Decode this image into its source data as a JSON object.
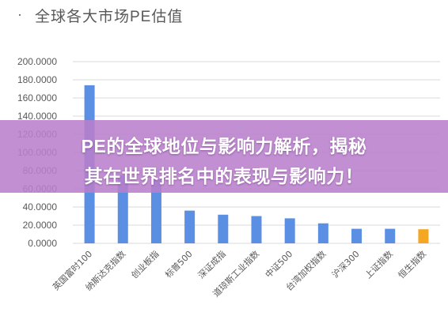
{
  "header": {
    "dot": "·",
    "title": "全球各大市场PE估值"
  },
  "banner": {
    "line1": "PE的全球地位与影响力解析，揭秘",
    "line2": "其在世界排名中的表现与影响力！"
  },
  "colors": {
    "bar": "#5b8fe3",
    "highlight_bar": "#f5a623",
    "grid": "#d9d9d9",
    "axis_text": "#595959",
    "banner": "#ba80cc"
  },
  "chart_data": {
    "type": "bar",
    "title": "全球各大市场PE估值",
    "xlabel": "",
    "ylabel": "",
    "ylim": [
      0,
      200
    ],
    "yticks": [
      "0.0000",
      "20.0000",
      "40.0000",
      "60.0000",
      "80.0000",
      "100.0000",
      "120.0000",
      "140.0000",
      "160.0000",
      "180.0000",
      "200.0000"
    ],
    "grid": true,
    "legend": "none",
    "categories": [
      "英国富时100",
      "纳斯达克指数",
      "创业板指",
      "标普500",
      "深证成指",
      "道琼斯工业指数",
      "中证500",
      "台湾加权指数",
      "沪深300",
      "上证指数",
      "恒生指数"
    ],
    "values": [
      174,
      75,
      70,
      36,
      31.5,
      30,
      27.5,
      22,
      16,
      16,
      15.5
    ],
    "highlight_index": 10
  }
}
